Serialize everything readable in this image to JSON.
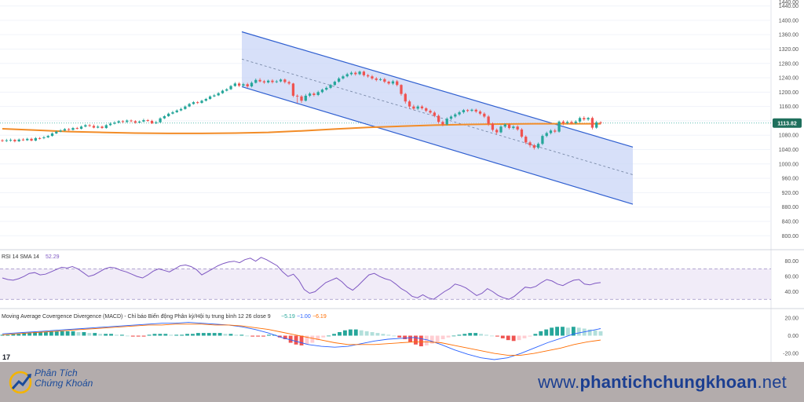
{
  "chart_data": [
    {
      "type": "candlestick",
      "title": "",
      "ylim": [
        770,
        1450
      ],
      "y_ticks": [
        800,
        840,
        880,
        920,
        960,
        1000,
        1040,
        1080,
        1120,
        1160,
        1200,
        1240,
        1280,
        1320,
        1360,
        1400,
        1440
      ],
      "last_price": "1113.82",
      "colors": {
        "up": "#26a69a",
        "down": "#ef5350",
        "ma": "#f28c28",
        "channel": "#2f5fd0",
        "channel_fill": "#c9d6f7"
      },
      "ma_line": [
        1098,
        1094,
        1090,
        1088,
        1086,
        1085,
        1085,
        1086,
        1088,
        1092,
        1097,
        1102,
        1105,
        1108,
        1110,
        1111,
        1112,
        1112,
        1112
      ],
      "descending_channel": {
        "upper": [
          1368,
          1047
        ],
        "middle": [
          1292,
          970
        ],
        "lower": [
          1215,
          888
        ]
      },
      "candles": [
        [
          1066,
          1064,
          1069,
          1061
        ],
        [
          1064,
          1066,
          1070,
          1061
        ],
        [
          1066,
          1067,
          1071,
          1062
        ],
        [
          1067,
          1063,
          1070,
          1060
        ],
        [
          1063,
          1068,
          1071,
          1061
        ],
        [
          1068,
          1066,
          1072,
          1064
        ],
        [
          1066,
          1070,
          1073,
          1064
        ],
        [
          1070,
          1065,
          1073,
          1063
        ],
        [
          1065,
          1072,
          1075,
          1063
        ],
        [
          1072,
          1070,
          1075,
          1068
        ],
        [
          1072,
          1074,
          1078,
          1069
        ],
        [
          1074,
          1078,
          1081,
          1072
        ],
        [
          1078,
          1085,
          1088,
          1076
        ],
        [
          1085,
          1090,
          1093,
          1083
        ],
        [
          1090,
          1093,
          1097,
          1088
        ],
        [
          1093,
          1097,
          1100,
          1091
        ],
        [
          1097,
          1095,
          1100,
          1092
        ],
        [
          1095,
          1100,
          1103,
          1093
        ],
        [
          1100,
          1098,
          1103,
          1096
        ],
        [
          1098,
          1104,
          1107,
          1096
        ],
        [
          1104,
          1108,
          1111,
          1102
        ],
        [
          1108,
          1106,
          1111,
          1103
        ],
        [
          1106,
          1101,
          1110,
          1099
        ],
        [
          1101,
          1104,
          1108,
          1099
        ],
        [
          1104,
          1100,
          1107,
          1098
        ],
        [
          1100,
          1108,
          1111,
          1098
        ],
        [
          1108,
          1112,
          1116,
          1106
        ],
        [
          1112,
          1115,
          1119,
          1110
        ],
        [
          1115,
          1119,
          1122,
          1113
        ],
        [
          1119,
          1117,
          1122,
          1114
        ],
        [
          1117,
          1121,
          1124,
          1114
        ],
        [
          1121,
          1119,
          1124,
          1116
        ],
        [
          1119,
          1115,
          1122,
          1112
        ],
        [
          1115,
          1118,
          1121,
          1113
        ],
        [
          1118,
          1122,
          1126,
          1116
        ],
        [
          1122,
          1120,
          1125,
          1117
        ],
        [
          1120,
          1113,
          1123,
          1111
        ],
        [
          1113,
          1116,
          1120,
          1111
        ],
        [
          1116,
          1127,
          1130,
          1114
        ],
        [
          1127,
          1133,
          1136,
          1125
        ],
        [
          1133,
          1140,
          1143,
          1131
        ],
        [
          1140,
          1144,
          1148,
          1138
        ],
        [
          1144,
          1149,
          1152,
          1142
        ],
        [
          1149,
          1153,
          1157,
          1147
        ],
        [
          1153,
          1160,
          1163,
          1151
        ],
        [
          1160,
          1167,
          1170,
          1158
        ],
        [
          1167,
          1172,
          1175,
          1165
        ],
        [
          1172,
          1170,
          1175,
          1167
        ],
        [
          1170,
          1176,
          1179,
          1168
        ],
        [
          1176,
          1181,
          1184,
          1174
        ],
        [
          1181,
          1188,
          1191,
          1179
        ],
        [
          1188,
          1191,
          1195,
          1186
        ],
        [
          1191,
          1197,
          1200,
          1189
        ],
        [
          1197,
          1204,
          1207,
          1195
        ],
        [
          1204,
          1208,
          1211,
          1202
        ],
        [
          1208,
          1217,
          1220,
          1206
        ],
        [
          1217,
          1224,
          1228,
          1215
        ],
        [
          1224,
          1218,
          1228,
          1214
        ],
        [
          1218,
          1222,
          1226,
          1215
        ],
        [
          1222,
          1216,
          1226,
          1212
        ],
        [
          1216,
          1226,
          1230,
          1213
        ],
        [
          1226,
          1234,
          1238,
          1224
        ],
        [
          1234,
          1230,
          1239,
          1227
        ],
        [
          1230,
          1227,
          1234,
          1223
        ],
        [
          1227,
          1232,
          1235,
          1224
        ],
        [
          1232,
          1228,
          1236,
          1224
        ],
        [
          1228,
          1230,
          1234,
          1225
        ],
        [
          1230,
          1235,
          1238,
          1227
        ],
        [
          1235,
          1228,
          1238,
          1224
        ],
        [
          1228,
          1224,
          1232,
          1220
        ],
        [
          1224,
          1190,
          1226,
          1186
        ],
        [
          1190,
          1188,
          1194,
          1170
        ],
        [
          1188,
          1176,
          1192,
          1170
        ],
        [
          1176,
          1190,
          1195,
          1174
        ],
        [
          1190,
          1196,
          1200,
          1186
        ],
        [
          1196,
          1192,
          1200,
          1188
        ],
        [
          1192,
          1200,
          1204,
          1189
        ],
        [
          1200,
          1207,
          1210,
          1197
        ],
        [
          1207,
          1212,
          1216,
          1204
        ],
        [
          1212,
          1220,
          1223,
          1209
        ],
        [
          1220,
          1229,
          1232,
          1218
        ],
        [
          1229,
          1238,
          1242,
          1226
        ],
        [
          1238,
          1244,
          1248,
          1235
        ],
        [
          1244,
          1250,
          1254,
          1241
        ],
        [
          1250,
          1254,
          1258,
          1246
        ],
        [
          1254,
          1250,
          1258,
          1246
        ],
        [
          1250,
          1257,
          1260,
          1247
        ],
        [
          1257,
          1247,
          1260,
          1243
        ],
        [
          1247,
          1244,
          1251,
          1240
        ],
        [
          1244,
          1238,
          1248,
          1234
        ],
        [
          1238,
          1234,
          1242,
          1230
        ],
        [
          1234,
          1236,
          1240,
          1231
        ],
        [
          1236,
          1229,
          1240,
          1225
        ],
        [
          1229,
          1224,
          1232,
          1220
        ],
        [
          1224,
          1230,
          1234,
          1220
        ],
        [
          1230,
          1220,
          1234,
          1216
        ],
        [
          1220,
          1195,
          1222,
          1190
        ],
        [
          1195,
          1174,
          1198,
          1168
        ],
        [
          1174,
          1160,
          1178,
          1155
        ],
        [
          1160,
          1154,
          1165,
          1150
        ],
        [
          1154,
          1160,
          1164,
          1150
        ],
        [
          1160,
          1155,
          1164,
          1151
        ],
        [
          1155,
          1148,
          1158,
          1144
        ],
        [
          1148,
          1143,
          1152,
          1139
        ],
        [
          1143,
          1134,
          1147,
          1130
        ],
        [
          1134,
          1117,
          1138,
          1112
        ],
        [
          1117,
          1110,
          1121,
          1105
        ],
        [
          1110,
          1126,
          1130,
          1107
        ],
        [
          1126,
          1132,
          1136,
          1122
        ],
        [
          1132,
          1138,
          1142,
          1128
        ],
        [
          1138,
          1144,
          1148,
          1134
        ],
        [
          1144,
          1150,
          1153,
          1140
        ],
        [
          1150,
          1148,
          1153,
          1144
        ],
        [
          1148,
          1151,
          1154,
          1145
        ],
        [
          1151,
          1146,
          1154,
          1142
        ],
        [
          1146,
          1140,
          1150,
          1136
        ],
        [
          1140,
          1132,
          1144,
          1128
        ],
        [
          1132,
          1112,
          1136,
          1106
        ],
        [
          1112,
          1095,
          1116,
          1090
        ],
        [
          1095,
          1088,
          1099,
          1082
        ],
        [
          1088,
          1104,
          1108,
          1085
        ],
        [
          1104,
          1110,
          1113,
          1100
        ],
        [
          1110,
          1100,
          1113,
          1096
        ],
        [
          1100,
          1104,
          1108,
          1096
        ],
        [
          1104,
          1096,
          1108,
          1092
        ],
        [
          1096,
          1076,
          1100,
          1072
        ],
        [
          1076,
          1060,
          1080,
          1055
        ],
        [
          1060,
          1052,
          1064,
          1046
        ],
        [
          1052,
          1045,
          1056,
          1040
        ],
        [
          1045,
          1056,
          1060,
          1041
        ],
        [
          1056,
          1078,
          1082,
          1052
        ],
        [
          1078,
          1086,
          1090,
          1074
        ],
        [
          1086,
          1093,
          1097,
          1082
        ],
        [
          1093,
          1090,
          1098,
          1086
        ],
        [
          1090,
          1118,
          1121,
          1087
        ],
        [
          1118,
          1114,
          1122,
          1108
        ],
        [
          1114,
          1117,
          1121,
          1110
        ],
        [
          1117,
          1114,
          1121,
          1110
        ],
        [
          1114,
          1118,
          1122,
          1110
        ],
        [
          1118,
          1128,
          1132,
          1114
        ],
        [
          1128,
          1124,
          1133,
          1120
        ],
        [
          1124,
          1128,
          1131,
          1120
        ],
        [
          1128,
          1101,
          1132,
          1096
        ],
        [
          1101,
          1116,
          1120,
          1098
        ],
        [
          1116,
          1114,
          1119,
          1110
        ]
      ]
    },
    {
      "type": "line",
      "title": "RSI 14 SMA 14",
      "value_label": "52.29",
      "ylim": [
        22,
        92
      ],
      "y_ticks": [
        40,
        60,
        80
      ],
      "band": [
        30,
        70
      ],
      "series": [
        {
          "values": [
            58,
            56,
            55,
            57,
            60,
            64,
            65,
            62,
            63,
            66,
            69,
            72,
            71,
            73,
            70,
            65,
            60,
            62,
            66,
            70,
            72,
            71,
            68,
            66,
            63,
            60,
            58,
            62,
            67,
            70,
            68,
            66,
            70,
            74,
            75,
            73,
            69,
            62,
            66,
            70,
            74,
            77,
            79,
            80,
            78,
            82,
            84,
            80,
            85,
            82,
            78,
            74,
            66,
            60,
            63,
            55,
            43,
            38,
            40,
            46,
            52,
            55,
            58,
            53,
            46,
            42,
            48,
            55,
            62,
            64,
            60,
            57,
            55,
            50,
            44,
            40,
            34,
            32,
            36,
            32,
            30,
            35,
            40,
            44,
            50,
            48,
            45,
            40,
            35,
            38,
            44,
            40,
            35,
            32,
            30,
            34,
            40,
            46,
            45,
            47,
            52,
            56,
            54,
            50,
            48,
            52,
            55,
            56,
            50,
            49,
            51,
            52
          ]
        }
      ]
    },
    {
      "type": "bar",
      "title": "Moving Average Covergence Divergence (MACD) - Chỉ báo Biến động Phân kỳ/Hội tụ trung bình 12 26 close 9",
      "values_label": [
        "−5.19",
        "−1.00",
        "−6.19"
      ],
      "ylim": [
        -27,
        27
      ],
      "y_ticks": [
        20,
        0,
        -20
      ],
      "histogram": [
        1,
        1,
        2,
        2,
        3,
        3,
        4,
        4,
        4,
        5,
        5,
        5,
        5,
        5,
        4,
        4,
        3,
        3,
        2,
        2,
        2,
        1,
        1,
        0,
        -1,
        -1,
        -1,
        1,
        2,
        2,
        2,
        1,
        1,
        1,
        2,
        2,
        3,
        3,
        3,
        3,
        3,
        2,
        2,
        1,
        1,
        0,
        -1,
        -1,
        -1,
        1,
        1,
        -2,
        -4,
        -8,
        -10,
        -11,
        -10,
        -8,
        -5,
        -2,
        0,
        2,
        4,
        6,
        7,
        7,
        6,
        5,
        4,
        3,
        2,
        1,
        0,
        -2,
        -4,
        -7,
        -10,
        -12,
        -11,
        -9,
        -7,
        -4,
        -2,
        0,
        1,
        2,
        3,
        3,
        2,
        1,
        0,
        -1,
        -3,
        -5,
        -6,
        -5,
        -3,
        -1,
        2,
        5,
        7,
        9,
        10,
        10,
        9,
        10,
        9,
        8,
        7,
        6,
        5
      ],
      "series": [
        {
          "values": [
            2,
            3,
            4,
            5,
            6,
            7,
            8,
            9,
            10,
            11,
            12,
            13,
            14,
            14,
            15,
            14,
            13,
            12,
            10,
            7,
            3,
            -2,
            -6,
            -10,
            -12,
            -13,
            -12,
            -9,
            -6,
            -4,
            -3,
            -2,
            -5,
            -10,
            -16,
            -21,
            -25,
            -27,
            -25,
            -20,
            -14,
            -8,
            -3,
            2,
            5,
            8
          ]
        },
        {
          "values": [
            1,
            2,
            3,
            4,
            5,
            6,
            7,
            8,
            9,
            10,
            11,
            12,
            12,
            13,
            13,
            13,
            12,
            12,
            11,
            9,
            7,
            4,
            1,
            -2,
            -5,
            -8,
            -10,
            -10,
            -10,
            -9,
            -8,
            -7,
            -7,
            -8,
            -11,
            -14,
            -17,
            -20,
            -22,
            -22,
            -20,
            -17,
            -14,
            -10,
            -7,
            -5
          ]
        }
      ]
    }
  ],
  "footer": {
    "logo_name": "Phân Tích Chứng Khoán",
    "brand_line1": "Phân Tích",
    "brand_line2": "Chứng Khoán",
    "website_prefix": "www.",
    "website_bold": "phantichchungkhoan",
    "website_suffix": ".net"
  }
}
